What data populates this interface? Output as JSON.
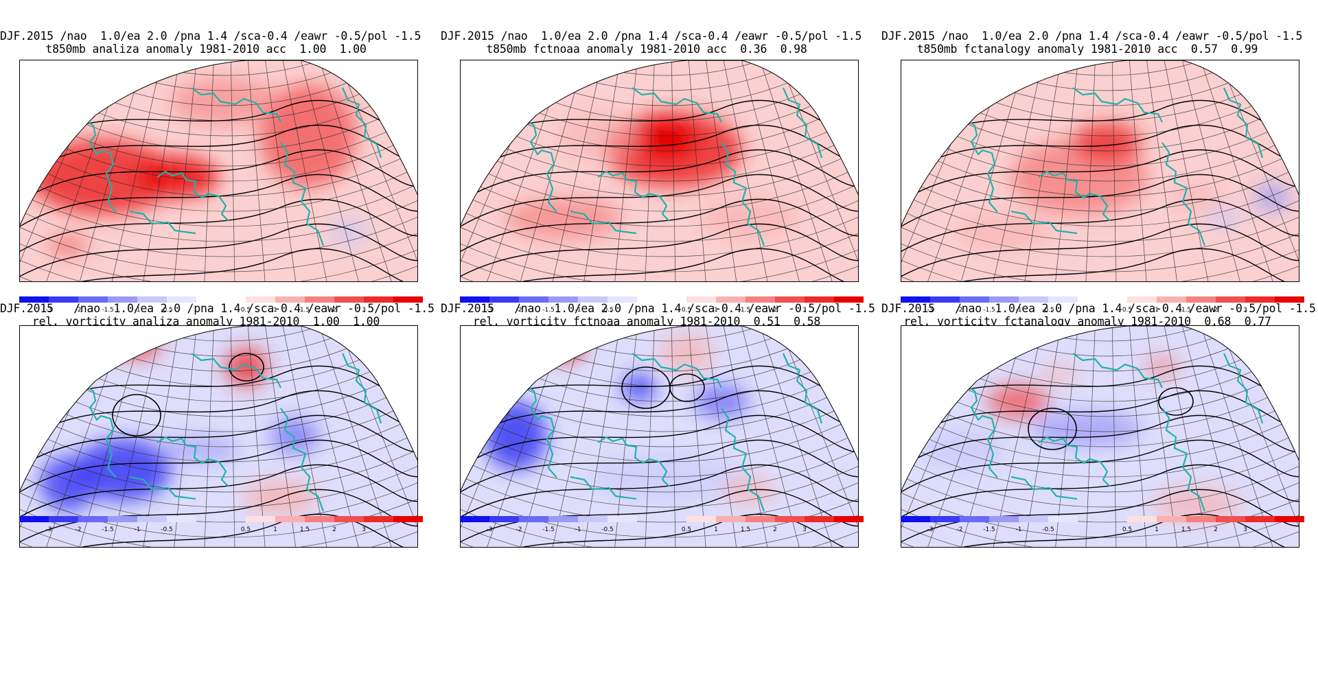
{
  "panels": [
    {
      "id": "p1",
      "title1": "DJF.2015 /nao  1.0/ea 2.0 /pna 1.4 /sca-0.4 /eawr -0.5/pol -1.5",
      "title2": "t850mb analiza anomaly 1981-2010 acc  1.00  1.00",
      "field": "t850"
    },
    {
      "id": "p2",
      "title1": "DJF.2015 /nao  1.0/ea 2.0 /pna 1.4 /sca-0.4 /eawr -0.5/pol -1.5",
      "title2": "t850mb fctnoaa anomaly 1981-2010 acc  0.36  0.98",
      "field": "t850"
    },
    {
      "id": "p3",
      "title1": "DJF.2015 /nao  1.0/ea 2.0 /pna 1.4 /sca-0.4 /eawr -0.5/pol -1.5",
      "title2": "t850mb fctanalogy anomaly 1981-2010 acc  0.57  0.99",
      "field": "t850"
    },
    {
      "id": "p4",
      "title1": "DJF.2015   /nao  1.0/ea 2.0 /pna 1.4 /sca-0.4 /eawr -0.5/pol -1.5",
      "title2": "rel. vorticity analiza anomaly 1981-2010  1.00  1.00",
      "field": "vort"
    },
    {
      "id": "p5",
      "title1": "DJF.2015   /nao  1.0/ea 2.0 /pna 1.4 /sca-0.4 /eawr -0.5/pol -1.5",
      "title2": "rel. vorticity fctnoaa anomaly 1981-2010  0.51  0.58",
      "field": "vort"
    },
    {
      "id": "p6",
      "title1": "DJF.2015   /nao  1.0/ea 2.0 /pna 1.4 /sca-0.4 /eawr -0.5/pol -1.5",
      "title2": "rel. vorticity fctanalogy anomaly 1981-2010  0.68  0.77",
      "field": "vort"
    }
  ],
  "colorbar": {
    "neg_colors": [
      "#1010f0",
      "#3a3af2",
      "#6a6af5",
      "#9a9af8",
      "#c8c8fb",
      "#e6e6fd"
    ],
    "pos_colors": [
      "#fde0e0",
      "#f9b0b0",
      "#f58080",
      "#f05050",
      "#ec2a2a",
      "#e80000"
    ],
    "neg_labels": [
      "-3",
      "-2",
      "-1.5",
      "-1",
      "-0.5"
    ],
    "pos_labels": [
      "0.5",
      "1",
      "1.5",
      "2",
      "3"
    ]
  },
  "colors": {
    "coastline": "#20b2aa",
    "contour": "#000000",
    "background": "#ffffff"
  }
}
